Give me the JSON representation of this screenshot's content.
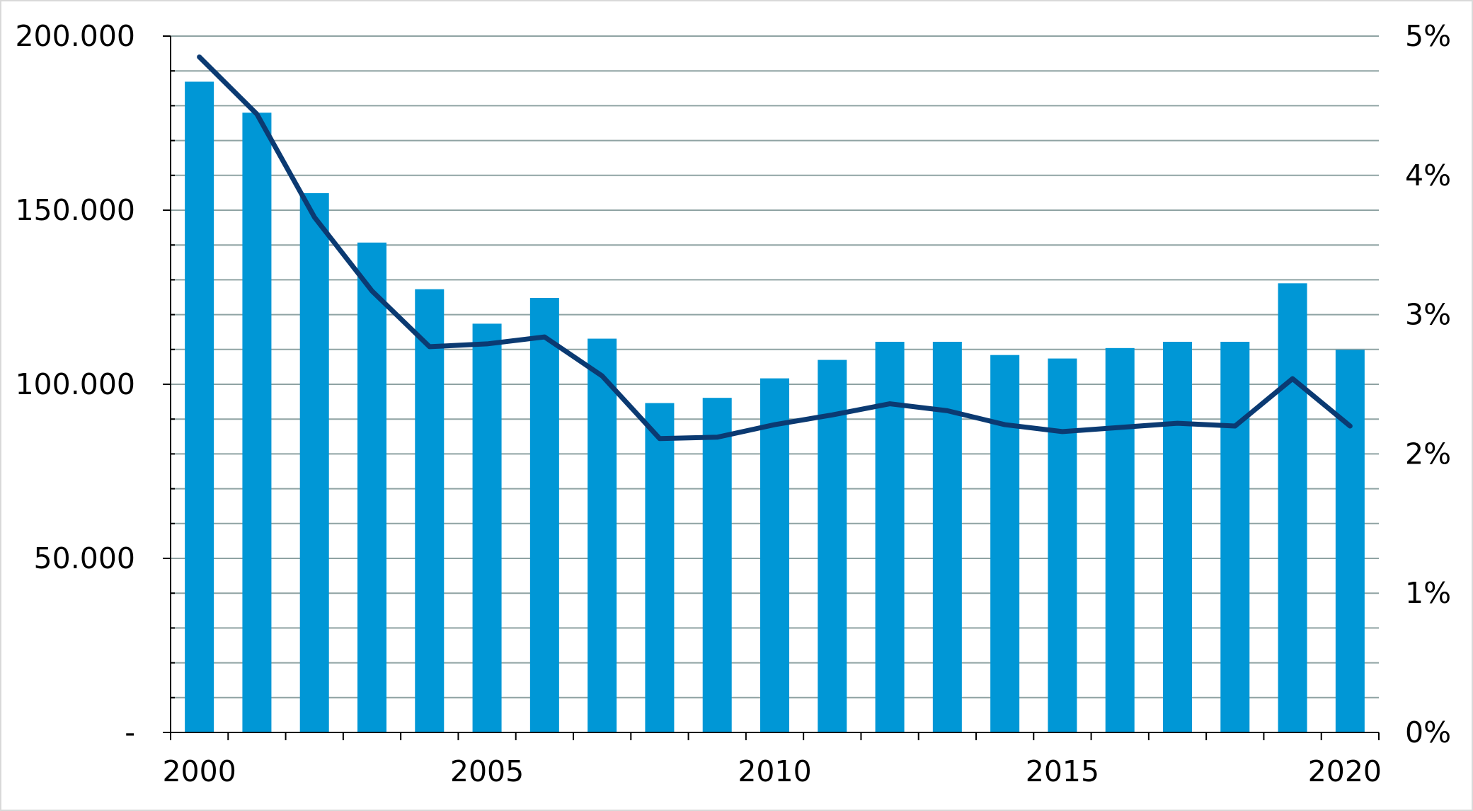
{
  "chart_data": {
    "type": "bar",
    "x": [
      2000,
      2001,
      2002,
      2003,
      2004,
      2005,
      2006,
      2007,
      2008,
      2009,
      2010,
      2011,
      2012,
      2013,
      2014,
      2015,
      2016,
      2017,
      2018,
      2019,
      2020
    ],
    "series": [
      {
        "type": "bar",
        "axis": "left",
        "color": "#0097d6",
        "values": [
          186900,
          178000,
          154900,
          140700,
          127300,
          117400,
          124800,
          113100,
          94600,
          96100,
          101700,
          107000,
          112200,
          112200,
          108400,
          107400,
          110400,
          112200,
          112200,
          129000,
          109900
        ]
      },
      {
        "type": "line",
        "axis": "right",
        "color": "#0b3a72",
        "values": [
          0.0485,
          0.0444,
          0.037,
          0.0317,
          0.0277,
          0.0279,
          0.0284,
          0.0256,
          0.0211,
          0.0212,
          0.0221,
          0.0228,
          0.0236,
          0.0231,
          0.0221,
          0.0216,
          0.0219,
          0.0222,
          0.022,
          0.0254,
          0.022
        ]
      }
    ],
    "y_left": {
      "ylim": [
        0,
        200000
      ],
      "major_step": 50000,
      "minor_step": 10000,
      "ticks": [
        "-",
        "50.000",
        "100.000",
        "150.000",
        "200.000"
      ]
    },
    "y_right": {
      "ylim": [
        0,
        0.05
      ],
      "ticks": [
        "0%",
        "1%",
        "2%",
        "3%",
        "4%",
        "5%"
      ]
    },
    "x_ticks": [
      "2000",
      "2005",
      "2010",
      "2015",
      "2020"
    ],
    "x_tick_years": [
      2000,
      2005,
      2010,
      2015,
      2020
    ],
    "grid": true,
    "grid_color": "#8fa3a3",
    "legend": "none"
  }
}
